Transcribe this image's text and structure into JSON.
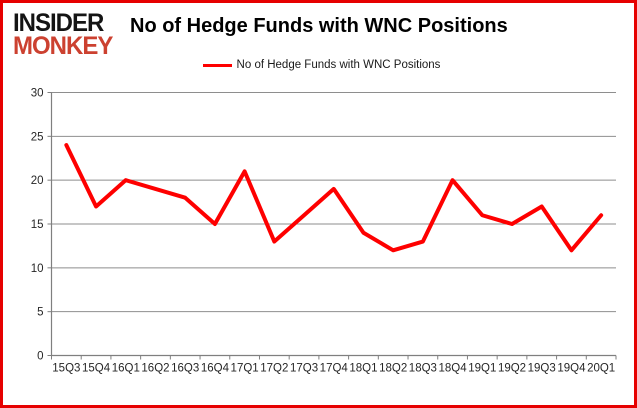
{
  "brand": {
    "line1": "INSIDER",
    "line2": "MONKEY"
  },
  "header": {
    "title": "No of Hedge Funds with WNC Positions"
  },
  "legend": {
    "label": "No of Hedge Funds with WNC Positions"
  },
  "colors": {
    "line": "#fe0000",
    "brand_black": "#141414",
    "brand_red": "#cc4130",
    "border": "#e60000",
    "grid": "#8e8e8e",
    "axis": "#7f7f7f",
    "tick_text": "#262626"
  },
  "chart_data": {
    "type": "line",
    "title": "No of Hedge Funds with WNC Positions",
    "categories": [
      "15Q3",
      "15Q4",
      "16Q1",
      "16Q2",
      "16Q3",
      "16Q4",
      "17Q1",
      "17Q2",
      "17Q3",
      "17Q4",
      "18Q1",
      "18Q2",
      "18Q3",
      "18Q4",
      "19Q1",
      "19Q2",
      "19Q3",
      "19Q4",
      "20Q1"
    ],
    "values": [
      24,
      17,
      20,
      19,
      18,
      15,
      21,
      13,
      16,
      19,
      14,
      12,
      13,
      20,
      16,
      15,
      17,
      12,
      16
    ],
    "series": [
      {
        "name": "No of Hedge Funds with WNC Positions",
        "values": [
          24,
          17,
          20,
          19,
          18,
          15,
          21,
          13,
          16,
          19,
          14,
          12,
          13,
          20,
          16,
          15,
          17,
          12,
          16
        ]
      }
    ],
    "xlabel": "",
    "ylabel": "",
    "ylim": [
      0,
      30
    ],
    "yticks": [
      0,
      5,
      10,
      15,
      20,
      25,
      30
    ],
    "grid": true,
    "legend_position": "top"
  }
}
